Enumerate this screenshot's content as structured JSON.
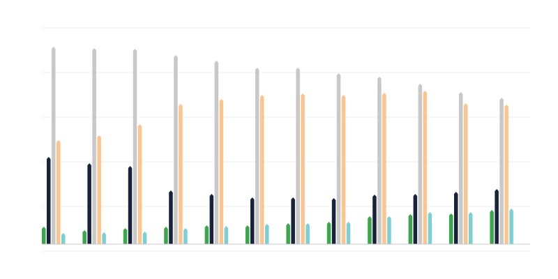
{
  "chart_data": {
    "type": "bar",
    "categories": [
      null,
      null,
      null,
      null,
      null,
      null,
      null,
      null,
      null,
      null,
      null,
      null
    ],
    "series": [
      {
        "color": "#3aa84a",
        "values": [
          25,
          20,
          23,
          25,
          27,
          27,
          30,
          32,
          40,
          43,
          44,
          49
        ]
      },
      {
        "color": "#18223a",
        "values": [
          125,
          116,
          112,
          77,
          72,
          67,
          67,
          66,
          71,
          72,
          75,
          79
        ]
      },
      {
        "color": "#c8c8c8",
        "values": [
          283,
          281,
          280,
          271,
          263,
          253,
          253,
          245,
          240,
          230,
          218,
          210
        ]
      },
      {
        "color": "#fcc48e",
        "values": [
          149,
          156,
          172,
          201,
          208,
          214,
          216,
          214,
          217,
          220,
          202,
          200
        ]
      },
      {
        "color": "#7ccfd3",
        "values": [
          16,
          17,
          18,
          23,
          26,
          29,
          30,
          32,
          40,
          46,
          46,
          51
        ]
      }
    ],
    "ylim": [
      -10,
      310
    ],
    "yticks": [
      -10,
      54,
      118,
      182,
      246,
      310
    ],
    "grid": true
  }
}
